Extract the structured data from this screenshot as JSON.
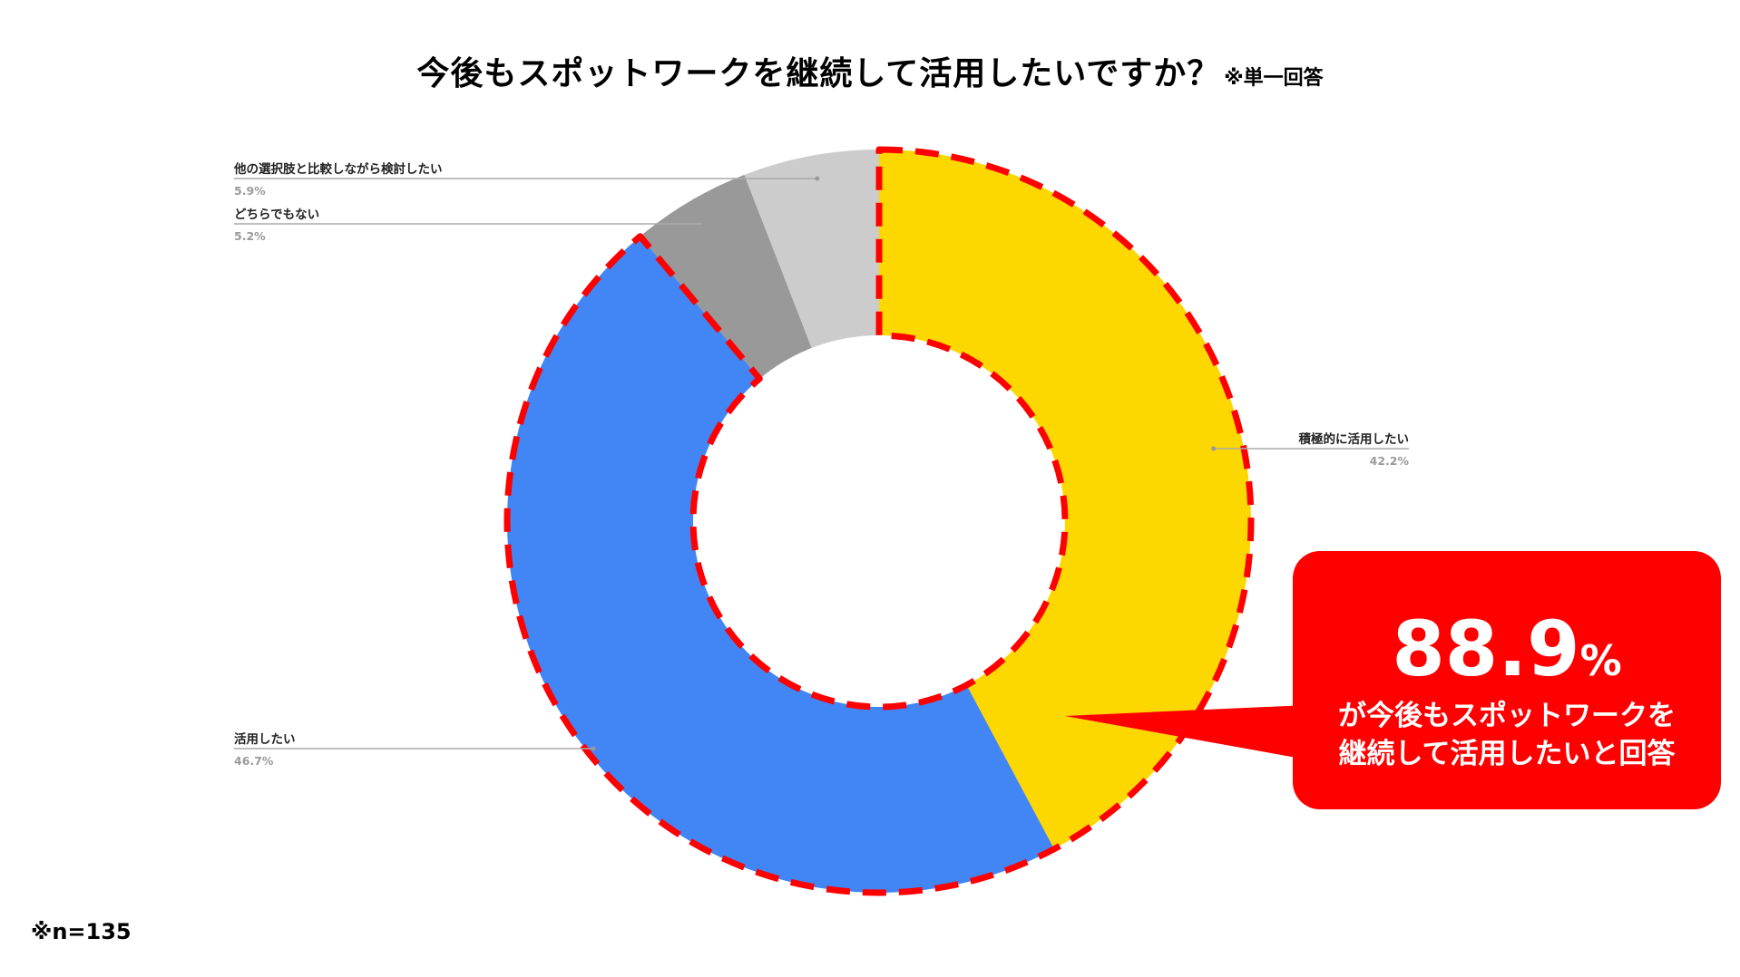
{
  "title": "今後もスポットワークを継続して活用したいですか？",
  "title_note": "※単一回答",
  "footnote": "※n=135",
  "callout": {
    "value": "88.9",
    "unit": "%",
    "line1": "が今後もスポットワークを",
    "line2": "継続して活用したいと回答",
    "color": "#ff0000"
  },
  "chart_data": {
    "type": "pie",
    "donut": true,
    "start": "top",
    "direction": "clockwise",
    "slices": [
      {
        "label": "積極的に活用したい",
        "value": 42.2,
        "value_label": "42.2%",
        "color": "#fdd700"
      },
      {
        "label": "活用したい",
        "value": 46.7,
        "value_label": "46.7%",
        "color": "#4285f4"
      },
      {
        "label": "どちらでもない",
        "value": 5.2,
        "value_label": "5.2%",
        "color": "#999999"
      },
      {
        "label": "他の選択肢と比較しながら検討したい",
        "value": 5.9,
        "value_label": "5.9%",
        "color": "#cccccc"
      }
    ],
    "highlight_slices": [
      "積極的に活用したい",
      "活用したい"
    ],
    "highlight_color": "#ff0000"
  }
}
